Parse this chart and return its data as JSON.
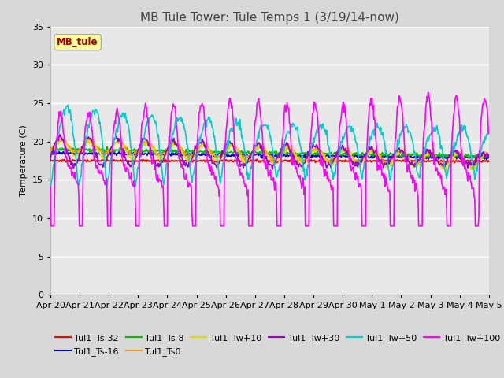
{
  "title": "MB Tule Tower: Tule Temps 1 (3/19/14-now)",
  "ylabel": "Temperature (C)",
  "ylim": [
    0,
    35
  ],
  "yticks": [
    0,
    5,
    10,
    15,
    20,
    25,
    30,
    35
  ],
  "x_labels": [
    "Apr 20",
    "Apr 21",
    "Apr 22",
    "Apr 23",
    "Apr 24",
    "Apr 25",
    "Apr 26",
    "Apr 27",
    "Apr 28",
    "Apr 29",
    "Apr 30",
    "May 1",
    "May 2",
    "May 3",
    "May 4",
    "May 5"
  ],
  "annotation_box": "MB_tule",
  "annotation_box_color": "#ffff99",
  "annotation_box_text_color": "#990000",
  "series": [
    {
      "label": "Tul1_Ts-32",
      "color": "#ff0000"
    },
    {
      "label": "Tul1_Ts-16",
      "color": "#0000cc"
    },
    {
      "label": "Tul1_Ts-8",
      "color": "#00bb00"
    },
    {
      "label": "Tul1_Ts0",
      "color": "#ff9900"
    },
    {
      "label": "Tul1_Tw+10",
      "color": "#dddd00"
    },
    {
      "label": "Tul1_Tw+30",
      "color": "#9900cc"
    },
    {
      "label": "Tul1_Tw+50",
      "color": "#00cccc"
    },
    {
      "label": "Tul1_Tw+100",
      "color": "#ff00ff"
    }
  ],
  "fig_bg_color": "#d8d8d8",
  "plot_bg_color": "#e8e8e8",
  "title_fontsize": 11,
  "axis_fontsize": 8,
  "legend_fontsize": 8
}
